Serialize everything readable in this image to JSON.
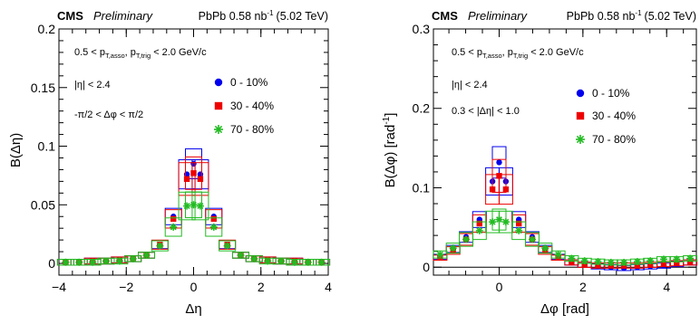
{
  "chart_data": [
    {
      "type": "scatter",
      "header": {
        "experiment": "CMS",
        "status": "Preliminary",
        "dataset": "PbPb 0.58 nb",
        "dataset_sup": "-1",
        "energy": "(5.02 TeV)"
      },
      "xlabel": "Δη",
      "ylabel": "B(Δη)",
      "xlim": [
        -4,
        4
      ],
      "ylim": [
        -0.01,
        0.2
      ],
      "xticks": [
        -4,
        -2,
        0,
        2,
        4
      ],
      "yticks": [
        0,
        0.05,
        0.1,
        0.15,
        0.2
      ],
      "ytick_labels": [
        "0",
        "0.05",
        "0.1",
        "0.15",
        "0.2"
      ],
      "cuts": [
        {
          "text": "0.5 < p",
          "sub1": "T,asso",
          "mid": ", p",
          "sub2": "T,trig",
          "tail": " < 2.0 GeV/c"
        },
        {
          "text": "|η| < 2.4"
        },
        {
          "text": "-π/2 < Δφ < π/2"
        }
      ],
      "x": [
        -3.8,
        -3.4,
        -3.0,
        -2.6,
        -2.2,
        -1.8,
        -1.4,
        -1.0,
        -0.6,
        -0.2,
        0.2,
        0.6,
        1.0,
        1.4,
        1.8,
        2.2,
        2.6,
        3.0,
        3.4,
        3.8
      ],
      "series": [
        {
          "name": "0 - 10%",
          "marker": "circle",
          "color": "#0000ee",
          "values": [
            0.001,
            0.001,
            0.002,
            0.002,
            0.003,
            0.004,
            0.007,
            0.016,
            0.04,
            0.076,
            0.076,
            0.04,
            0.016,
            0.007,
            0.004,
            0.003,
            0.002,
            0.002,
            0.001,
            0.001
          ],
          "peak": {
            "x": 0.0,
            "y": 0.085
          }
        },
        {
          "name": "30 - 40%",
          "marker": "square",
          "color": "#ee0000",
          "values": [
            0.001,
            0.001,
            0.002,
            0.002,
            0.003,
            0.004,
            0.007,
            0.016,
            0.038,
            0.072,
            0.072,
            0.038,
            0.016,
            0.007,
            0.004,
            0.003,
            0.002,
            0.002,
            0.001,
            0.001
          ],
          "peak": {
            "x": 0.0,
            "y": 0.077
          }
        },
        {
          "name": "70 - 80%",
          "marker": "star",
          "color": "#22bb22",
          "values": [
            0.001,
            0.001,
            0.001,
            0.002,
            0.002,
            0.004,
            0.007,
            0.015,
            0.031,
            0.049,
            0.049,
            0.031,
            0.015,
            0.007,
            0.004,
            0.002,
            0.002,
            0.001,
            0.001,
            0.001
          ],
          "peak": {
            "x": 0.0,
            "y": 0.05
          }
        }
      ]
    },
    {
      "type": "scatter",
      "header": {
        "experiment": "CMS",
        "status": "Preliminary",
        "dataset": "PbPb 0.58 nb",
        "dataset_sup": "-1",
        "energy": "(5.02 TeV)"
      },
      "xlabel": "Δφ [rad]",
      "ylabel": "B(Δφ) [rad",
      "ylabel_sup": "-1",
      "ylabel_tail": "]",
      "xlim": [
        -1.57,
        4.71
      ],
      "ylim": [
        -0.01,
        0.3
      ],
      "xticks": [
        0,
        2,
        4
      ],
      "yticks": [
        0,
        0.1,
        0.2,
        0.3
      ],
      "ytick_labels": [
        "0",
        "0.1",
        "0.2",
        "0.3"
      ],
      "cuts": [
        {
          "text": "0.5 < p",
          "sub1": "T,asso",
          "mid": ", p",
          "sub2": "T,trig",
          "tail": " < 2.0 GeV/c"
        },
        {
          "text": "|η| < 2.4"
        },
        {
          "text": "0.3 < |Δη| < 1.0"
        }
      ],
      "x": [
        -1.41,
        -1.1,
        -0.79,
        -0.47,
        -0.16,
        0.16,
        0.47,
        0.79,
        1.1,
        1.41,
        1.73,
        2.04,
        2.36,
        2.67,
        2.98,
        3.3,
        3.61,
        3.93,
        4.24,
        4.56
      ],
      "series": [
        {
          "name": "0 - 10%",
          "marker": "circle",
          "color": "#0000ee",
          "values": [
            0.013,
            0.023,
            0.038,
            0.06,
            0.108,
            0.108,
            0.06,
            0.038,
            0.023,
            0.013,
            0.006,
            0.003,
            0.001,
            0.0,
            -0.001,
            0.0,
            0.001,
            0.002,
            0.004,
            0.006
          ],
          "peak": {
            "x": 0.0,
            "y": 0.132
          }
        },
        {
          "name": "30 - 40%",
          "marker": "square",
          "color": "#ee0000",
          "values": [
            0.012,
            0.021,
            0.035,
            0.055,
            0.098,
            0.098,
            0.055,
            0.035,
            0.021,
            0.012,
            0.006,
            0.003,
            0.002,
            0.002,
            0.002,
            0.002,
            0.003,
            0.004,
            0.005,
            0.006
          ],
          "peak": {
            "x": 0.0,
            "y": 0.115
          }
        },
        {
          "name": "70 - 80%",
          "marker": "star",
          "color": "#22bb22",
          "values": [
            0.016,
            0.024,
            0.035,
            0.046,
            0.057,
            0.057,
            0.046,
            0.035,
            0.024,
            0.016,
            0.011,
            0.008,
            0.007,
            0.006,
            0.006,
            0.007,
            0.008,
            0.01,
            0.01,
            0.011
          ],
          "peak": {
            "x": 0.0,
            "y": 0.06
          }
        }
      ]
    }
  ]
}
